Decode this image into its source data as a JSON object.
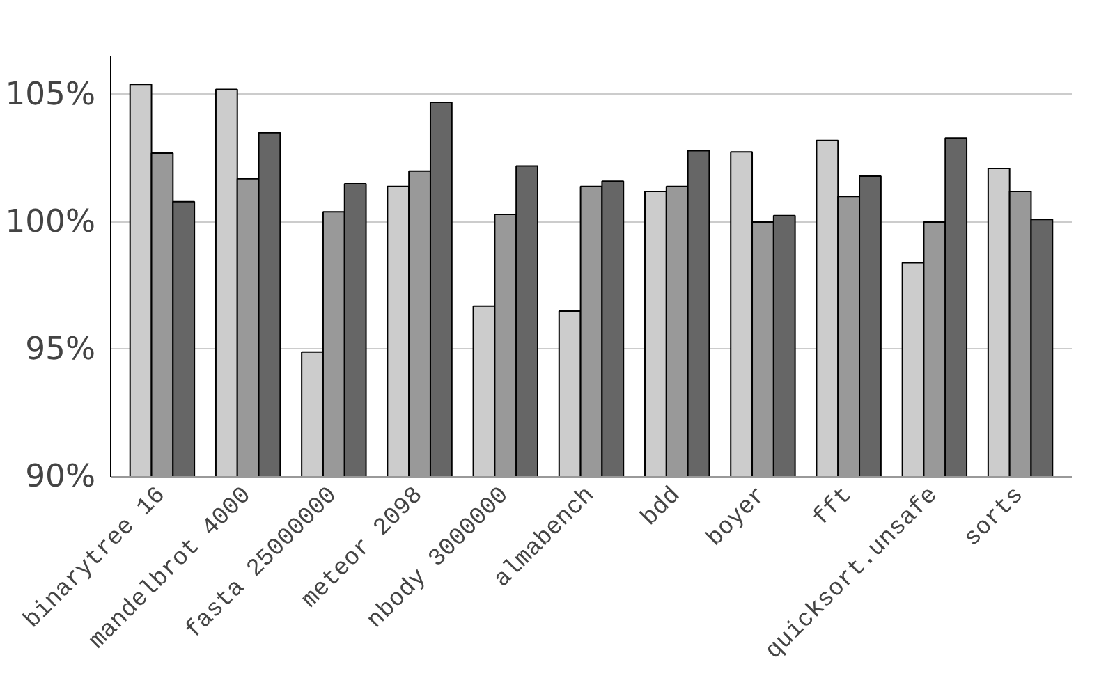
{
  "chart_data": {
    "type": "bar",
    "categories": [
      "binarytree 16",
      "mandelbrot 4000",
      "fasta 25000000",
      "meteor 2098",
      "nbody 3000000",
      "almabench",
      "bdd",
      "boyer",
      "fft",
      "quicksort.unsafe",
      "sorts"
    ],
    "series": [
      {
        "color": "#cccccc",
        "values": [
          105.4,
          105.2,
          94.9,
          101.4,
          96.7,
          96.5,
          101.2,
          102.75,
          103.2,
          98.4,
          102.1
        ]
      },
      {
        "color": "#999999",
        "values": [
          102.7,
          101.7,
          100.4,
          102.0,
          100.3,
          101.4,
          101.4,
          100.0,
          101.0,
          100.0,
          101.2
        ]
      },
      {
        "color": "#666666",
        "values": [
          100.8,
          103.5,
          101.5,
          104.7,
          102.2,
          101.6,
          102.8,
          100.25,
          101.8,
          103.3,
          100.1
        ]
      }
    ],
    "ylim": [
      90,
      106.5
    ],
    "yticks": [
      {
        "value": 90,
        "label": "90%"
      },
      {
        "value": 95,
        "label": "95%"
      },
      {
        "value": 100,
        "label": "100%"
      },
      {
        "value": 105,
        "label": "105%"
      }
    ],
    "grid": "y"
  }
}
